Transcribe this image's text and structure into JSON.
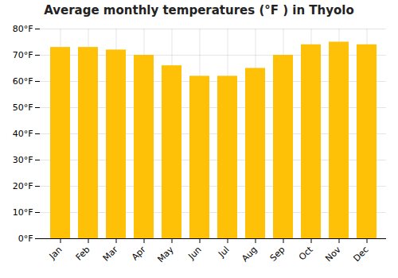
{
  "chart_data": {
    "type": "bar",
    "title": "Average monthly temperatures (°F ) in Thyolo",
    "categories": [
      "Jan",
      "Feb",
      "Mar",
      "Apr",
      "May",
      "Jun",
      "Jul",
      "Aug",
      "Sep",
      "Oct",
      "Nov",
      "Dec"
    ],
    "values": [
      73,
      73,
      72,
      70,
      66,
      62,
      62,
      65,
      70,
      74,
      75,
      74
    ],
    "color": "#FFC107",
    "ylim": [
      0,
      80
    ],
    "yticks": [
      {
        "value": 0,
        "label": "0°F"
      },
      {
        "value": 10,
        "label": "10°F"
      },
      {
        "value": 20,
        "label": "20°F"
      },
      {
        "value": 30,
        "label": "30°F"
      },
      {
        "value": 40,
        "label": "40°F"
      },
      {
        "value": 50,
        "label": "50°F"
      },
      {
        "value": 60,
        "label": "60°F"
      },
      {
        "value": 70,
        "label": "70°F"
      },
      {
        "value": 80,
        "label": "80°F"
      }
    ],
    "grid": true
  }
}
